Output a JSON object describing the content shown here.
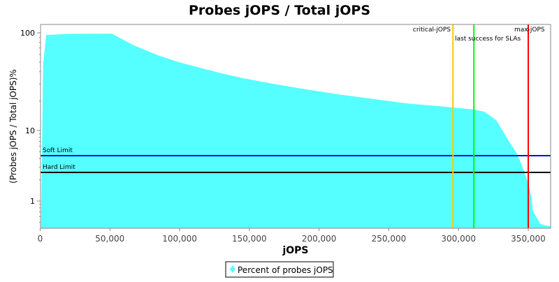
{
  "chart_data": {
    "type": "area",
    "title": "Probes jOPS / Total jOPS",
    "xlabel": "jOPS",
    "ylabel": "(Probes jOPS / Total jOPS)%",
    "xlim": [
      0,
      366000
    ],
    "ylim": [
      0.41,
      130
    ],
    "y_scale": "log",
    "x_ticks": [
      0,
      50000,
      100000,
      150000,
      200000,
      250000,
      300000,
      350000
    ],
    "x_tick_labels": [
      "0",
      "50,000",
      "100,000",
      "150,000",
      "200,000",
      "250,000",
      "300,000",
      "350,000"
    ],
    "y_ticks": [
      1,
      10,
      100
    ],
    "y_tick_labels": [
      "1",
      "10",
      "100"
    ],
    "grid": false,
    "legend_position": "bottom",
    "series": [
      {
        "name": "Percent of probes jOPS",
        "color": "#55ffff",
        "x": [
          600,
          2100,
          4300,
          20000,
          51400,
          67200,
          84800,
          99800,
          116500,
          129900,
          144900,
          166600,
          188200,
          213200,
          238300,
          263300,
          286900,
          296000,
          311000,
          318500,
          327000,
          335500,
          342000,
          346000,
          349500,
          352000,
          353500,
          358500,
          362000,
          366000
        ],
        "y": [
          0.41,
          47,
          95,
          97.5,
          97.9,
          74.3,
          58.7,
          49.9,
          43.1,
          38.5,
          34.5,
          30.1,
          26.7,
          23.5,
          21.1,
          18.9,
          17.7,
          17.2,
          16.4,
          15.6,
          12.8,
          7.4,
          4.7,
          3.0,
          1.89,
          1.2,
          0.71,
          0.48,
          0.45,
          0.44
        ]
      }
    ],
    "horizontal_lines": [
      {
        "label": "Soft Limit",
        "value": 4.4,
        "color": "#0000ff"
      },
      {
        "label": "Hard Limit",
        "value": 2.55,
        "color": "#000000"
      }
    ],
    "vertical_lines": [
      {
        "label": "critical-jOPS",
        "value": 296000,
        "color": "#ffc800"
      },
      {
        "label": "last success for SLAs",
        "value": 311000,
        "color": "#00ff00"
      },
      {
        "label": "max-jOPS",
        "value": 350000,
        "color": "#ff0000"
      }
    ]
  }
}
